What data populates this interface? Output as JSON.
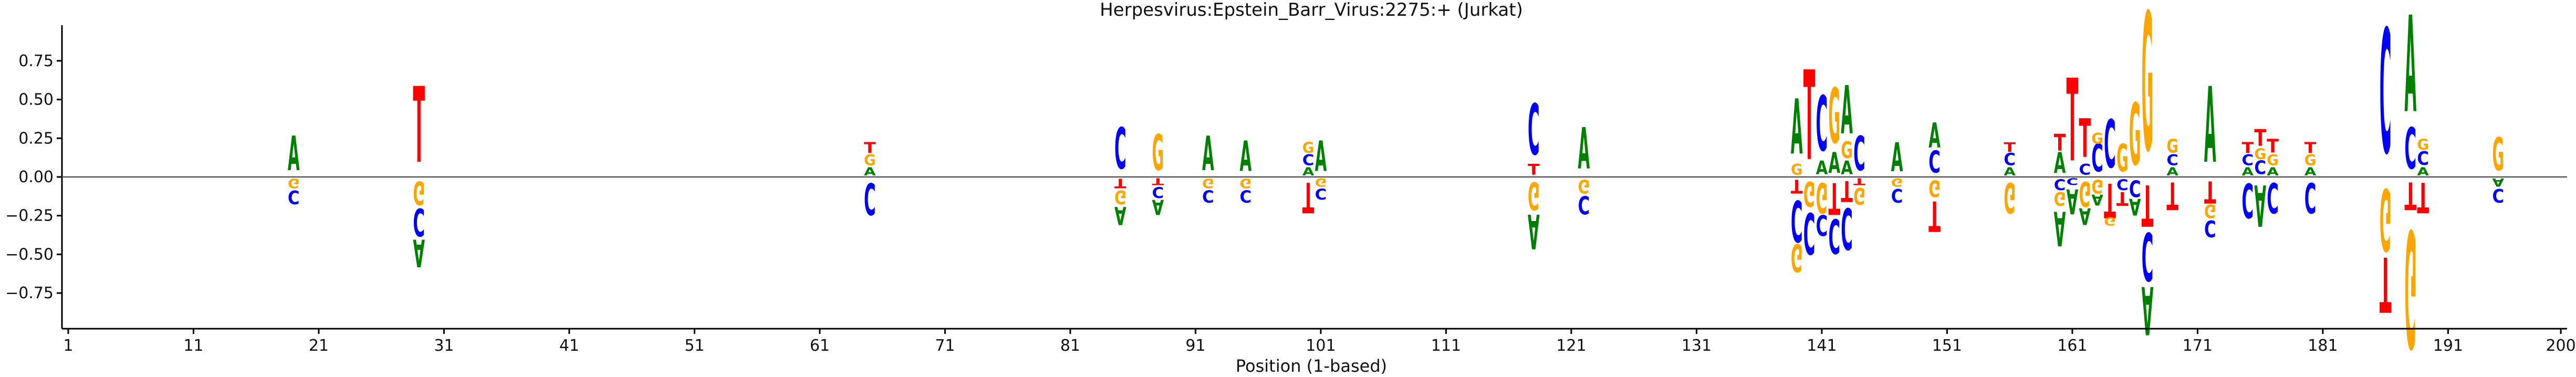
{
  "colors": {
    "A": "#008000",
    "C": "#0000ff",
    "G": "#ffa500",
    "T": "#ff0000"
  },
  "chart_data": {
    "type": "sequence-logo",
    "title": "Herpesvirus:Epstein_Barr_Virus:2275:+  (Jurkat)",
    "xlabel": "Position (1-based)",
    "ylabel": "",
    "xlim": [
      0.5,
      200.5
    ],
    "ylim": [
      -0.98,
      0.98
    ],
    "x_ticks": [
      1,
      11,
      21,
      31,
      41,
      51,
      61,
      71,
      81,
      91,
      101,
      111,
      121,
      131,
      141,
      151,
      161,
      171,
      181,
      191,
      200
    ],
    "y_ticks": [
      -0.75,
      -0.5,
      -0.25,
      0.0,
      0.25,
      0.5,
      0.75
    ],
    "y_tick_labels": [
      "−0.75",
      "−0.50",
      "−0.25",
      "0.00",
      "0.25",
      "0.50",
      "0.75"
    ],
    "positions": [
      {
        "pos": 19,
        "pos_stack": [
          [
            "A",
            0.25
          ]
        ],
        "neg_stack": [
          [
            "G",
            0.07
          ],
          [
            "C",
            0.1
          ]
        ]
      },
      {
        "pos": 29,
        "pos_stack": [
          [
            "T",
            0.55
          ]
        ],
        "neg_stack": [
          [
            "G",
            0.17
          ],
          [
            "C",
            0.2
          ],
          [
            "A",
            0.2
          ]
        ]
      },
      {
        "pos": 65,
        "pos_stack": [
          [
            "A",
            0.06
          ],
          [
            "G",
            0.08
          ],
          [
            "T",
            0.08
          ]
        ],
        "neg_stack": [
          [
            "C",
            0.23
          ]
        ]
      },
      {
        "pos": 85,
        "pos_stack": [
          [
            "C",
            0.3
          ]
        ],
        "neg_stack": [
          [
            "T",
            0.07
          ],
          [
            "G",
            0.1
          ],
          [
            "A",
            0.13
          ]
        ]
      },
      {
        "pos": 88,
        "pos_stack": [
          [
            "G",
            0.26
          ]
        ],
        "neg_stack": [
          [
            "T",
            0.05
          ],
          [
            "C",
            0.08
          ],
          [
            "A",
            0.11
          ]
        ]
      },
      {
        "pos": 92,
        "pos_stack": [
          [
            "A",
            0.25
          ]
        ],
        "neg_stack": [
          [
            "G",
            0.07
          ],
          [
            "C",
            0.09
          ]
        ]
      },
      {
        "pos": 95,
        "pos_stack": [
          [
            "A",
            0.22
          ]
        ],
        "neg_stack": [
          [
            "G",
            0.07
          ],
          [
            "C",
            0.09
          ]
        ]
      },
      {
        "pos": 100,
        "pos_stack": [
          [
            "A",
            0.06
          ],
          [
            "C",
            0.08
          ],
          [
            "G",
            0.08
          ]
        ],
        "neg_stack": [
          [
            "T",
            0.22
          ]
        ]
      },
      {
        "pos": 101,
        "pos_stack": [
          [
            "A",
            0.22
          ]
        ],
        "neg_stack": [
          [
            "G",
            0.06
          ],
          [
            "C",
            0.08
          ]
        ]
      },
      {
        "pos": 118,
        "pos_stack": [
          [
            "T",
            0.08
          ],
          [
            "C",
            0.37
          ]
        ],
        "neg_stack": [
          [
            "G",
            0.2
          ],
          [
            "A",
            0.25
          ]
        ]
      },
      {
        "pos": 122,
        "pos_stack": [
          [
            "A",
            0.3
          ]
        ],
        "neg_stack": [
          [
            "G",
            0.1
          ],
          [
            "C",
            0.13
          ]
        ]
      },
      {
        "pos": 139,
        "pos_stack": [
          [
            "G",
            0.08
          ],
          [
            "A",
            0.4
          ]
        ],
        "neg_stack": [
          [
            "T",
            0.1
          ],
          [
            "C",
            0.3
          ],
          [
            "G",
            0.2
          ]
        ]
      },
      {
        "pos": 140,
        "pos_stack": [
          [
            "T",
            0.65
          ]
        ],
        "neg_stack": [
          [
            "G",
            0.18
          ],
          [
            "C",
            0.3
          ]
        ]
      },
      {
        "pos": 141,
        "pos_stack": [
          [
            "A",
            0.1
          ],
          [
            "C",
            0.4
          ]
        ],
        "neg_stack": [
          [
            "G",
            0.22
          ],
          [
            "C",
            0.15
          ]
        ]
      },
      {
        "pos": 142,
        "pos_stack": [
          [
            "A",
            0.15
          ],
          [
            "G",
            0.4
          ]
        ],
        "neg_stack": [
          [
            "T",
            0.23
          ],
          [
            "C",
            0.25
          ]
        ]
      },
      {
        "pos": 143,
        "pos_stack": [
          [
            "A",
            0.1
          ],
          [
            "G",
            0.12
          ],
          [
            "A",
            0.35
          ]
        ],
        "neg_stack": [
          [
            "T",
            0.15
          ],
          [
            "C",
            0.3
          ]
        ]
      },
      {
        "pos": 144,
        "pos_stack": [
          [
            "C",
            0.25
          ]
        ],
        "neg_stack": [
          [
            "T",
            0.05
          ],
          [
            "G",
            0.12
          ]
        ]
      },
      {
        "pos": 147,
        "pos_stack": [
          [
            "A",
            0.21
          ]
        ],
        "neg_stack": [
          [
            "G",
            0.06
          ],
          [
            "C",
            0.1
          ]
        ]
      },
      {
        "pos": 150,
        "pos_stack": [
          [
            "C",
            0.16
          ],
          [
            "A",
            0.18
          ]
        ],
        "neg_stack": [
          [
            "G",
            0.12
          ],
          [
            "T",
            0.22
          ]
        ]
      },
      {
        "pos": 156,
        "pos_stack": [
          [
            "A",
            0.06
          ],
          [
            "C",
            0.09
          ],
          [
            "T",
            0.07
          ]
        ],
        "neg_stack": [
          [
            "G",
            0.22
          ]
        ]
      },
      {
        "pos": 160,
        "pos_stack": [
          [
            "A",
            0.15
          ],
          [
            "T",
            0.12
          ]
        ],
        "neg_stack": [
          [
            "C",
            0.08
          ],
          [
            "G",
            0.1
          ],
          [
            "A",
            0.25
          ]
        ]
      },
      {
        "pos": 161,
        "pos_stack": [
          [
            "T",
            0.6
          ]
        ],
        "neg_stack": [
          [
            "C",
            0.05
          ],
          [
            "A",
            0.18
          ]
        ]
      },
      {
        "pos": 162,
        "pos_stack": [
          [
            "C",
            0.08
          ],
          [
            "T",
            0.28
          ]
        ],
        "neg_stack": [
          [
            "G",
            0.18
          ],
          [
            "A",
            0.12
          ]
        ]
      },
      {
        "pos": 163,
        "pos_stack": [
          [
            "C",
            0.2
          ],
          [
            "G",
            0.08
          ]
        ],
        "neg_stack": [
          [
            "G",
            0.1
          ],
          [
            "A",
            0.08
          ]
        ]
      },
      {
        "pos": 164,
        "pos_stack": [
          [
            "C",
            0.35
          ]
        ],
        "neg_stack": [
          [
            "T",
            0.25
          ],
          [
            "G",
            0.06
          ]
        ]
      },
      {
        "pos": 165,
        "pos_stack": [
          [
            "G",
            0.2
          ]
        ],
        "neg_stack": [
          [
            "C",
            0.08
          ],
          [
            "T",
            0.1
          ]
        ]
      },
      {
        "pos": 166,
        "pos_stack": [
          [
            "G",
            0.45
          ]
        ],
        "neg_stack": [
          [
            "C",
            0.12
          ],
          [
            "A",
            0.12
          ]
        ]
      },
      {
        "pos": 167,
        "pos_stack": [
          [
            "G",
            1.0
          ]
        ],
        "neg_stack": [
          [
            "T",
            0.3
          ],
          [
            "C",
            0.35
          ],
          [
            "A",
            0.35
          ]
        ]
      },
      {
        "pos": 169,
        "pos_stack": [
          [
            "A",
            0.06
          ],
          [
            "C",
            0.08
          ],
          [
            "G",
            0.1
          ]
        ],
        "neg_stack": [
          [
            "T",
            0.2
          ]
        ]
      },
      {
        "pos": 172,
        "pos_stack": [
          [
            "A",
            0.55
          ]
        ],
        "neg_stack": [
          [
            "T",
            0.16
          ],
          [
            "G",
            0.1
          ],
          [
            "C",
            0.12
          ]
        ]
      },
      {
        "pos": 175,
        "pos_stack": [
          [
            "A",
            0.06
          ],
          [
            "C",
            0.08
          ],
          [
            "T",
            0.08
          ]
        ],
        "neg_stack": [
          [
            "C",
            0.25
          ]
        ]
      },
      {
        "pos": 176,
        "pos_stack": [
          [
            "C",
            0.1
          ],
          [
            "G",
            0.08
          ],
          [
            "T",
            0.12
          ]
        ],
        "neg_stack": [
          [
            "A",
            0.3
          ]
        ]
      },
      {
        "pos": 177,
        "pos_stack": [
          [
            "A",
            0.06
          ],
          [
            "G",
            0.08
          ],
          [
            "T",
            0.1
          ]
        ],
        "neg_stack": [
          [
            "C",
            0.22
          ]
        ]
      },
      {
        "pos": 180,
        "pos_stack": [
          [
            "A",
            0.06
          ],
          [
            "G",
            0.08
          ],
          [
            "T",
            0.08
          ]
        ],
        "neg_stack": [
          [
            "C",
            0.22
          ]
        ]
      },
      {
        "pos": 186,
        "pos_stack": [
          [
            "C",
            0.9
          ]
        ],
        "neg_stack": [
          [
            "G",
            0.45
          ],
          [
            "T",
            0.4
          ]
        ]
      },
      {
        "pos": 188,
        "pos_stack": [
          [
            "C",
            0.3
          ],
          [
            "A",
            0.7
          ]
        ],
        "neg_stack": [
          [
            "T",
            0.2
          ],
          [
            "G",
            0.85
          ]
        ]
      },
      {
        "pos": 189,
        "pos_stack": [
          [
            "A",
            0.06
          ],
          [
            "C",
            0.1
          ],
          [
            "G",
            0.08
          ]
        ],
        "neg_stack": [
          [
            "T",
            0.22
          ]
        ]
      },
      {
        "pos": 195,
        "pos_stack": [
          [
            "G",
            0.24
          ]
        ],
        "neg_stack": [
          [
            "A",
            0.06
          ],
          [
            "C",
            0.1
          ]
        ]
      }
    ]
  }
}
